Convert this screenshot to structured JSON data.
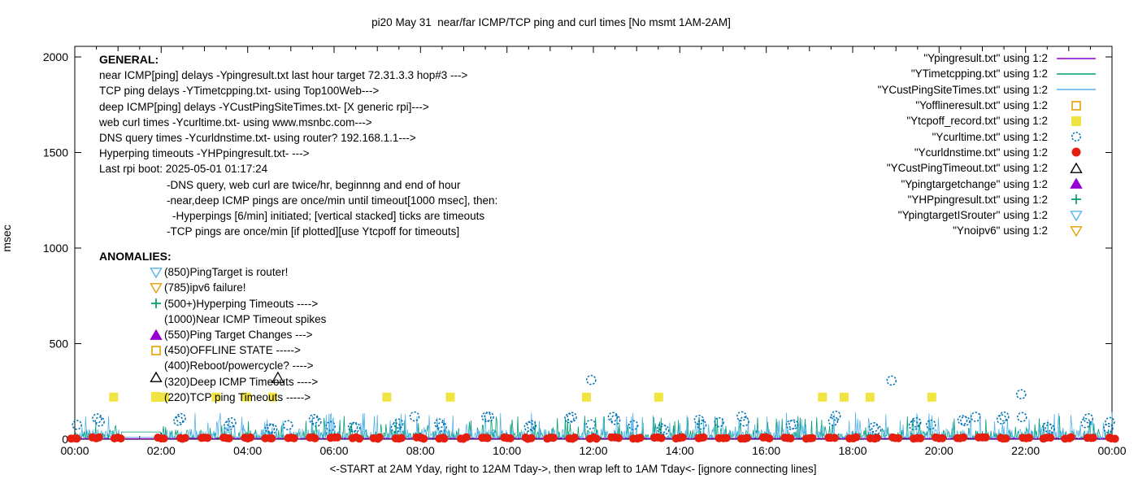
{
  "title": "pi20 May 31  near/far ICMP/TCP ping and curl times [No msmt 1AM-2AM]",
  "caption": "<-START at 2AM Yday, right to 12AM Tday->, then wrap left to 1AM Tday<- [ignore connecting lines]",
  "general": {
    "header": "GENERAL:",
    "lines": [
      {
        "indent": 0,
        "text": "near ICMP[ping] delays -Ypingresult.txt last hour target 72.31.3.3 hop#3 --->"
      },
      {
        "indent": 0,
        "text": "TCP ping delays -YTimetcpping.txt- using Top100Web--->"
      },
      {
        "indent": 0,
        "text": "deep ICMP[ping] delays -YCustPingSiteTimes.txt- [X generic rpi]--->"
      },
      {
        "indent": 0,
        "text": "web curl times -Ycurltime.txt- using www.msnbc.com--->"
      },
      {
        "indent": 0,
        "text": "DNS query times -Ycurldnstime.txt- using router? 192.168.1.1--->"
      },
      {
        "indent": 0,
        "text": "Hyperping timeouts -YHPpingresult.txt- --->"
      },
      {
        "indent": 0,
        "text": "Last rpi boot: 2025-05-01 01:17:24"
      },
      {
        "indent": 1,
        "text": "-DNS query, web curl are twice/hr, beginnng and end of hour"
      },
      {
        "indent": 1,
        "text": "-near,deep ICMP pings are once/min until timeout[1000 msec], then:"
      },
      {
        "indent": 2,
        "text": "-Hyperpings [6/min] initiated; [vertical stacked] ticks are timeouts"
      },
      {
        "indent": 1,
        "text": "-TCP pings are once/min [if plotted][use Ytcpoff for timeouts]"
      }
    ]
  },
  "anomalies": {
    "header": "ANOMALIES:",
    "items": [
      {
        "marker": "triangle-down-open-skyblue",
        "raise": false,
        "text": "(850)PingTarget is router!"
      },
      {
        "marker": "triangle-down-open-orange",
        "raise": false,
        "text": "(785)ipv6 failure!"
      },
      {
        "marker": "plus-teal",
        "raise": false,
        "text": "(500+)Hyperping Timeouts ---->"
      },
      {
        "marker": "",
        "raise": false,
        "text": "(1000)Near ICMP Timeout spikes"
      },
      {
        "marker": "triangle-up-filled-purple",
        "raise": false,
        "text": "(550)Ping Target Changes --->"
      },
      {
        "marker": "square-open-orange",
        "raise": false,
        "text": "(450)OFFLINE STATE ----->"
      },
      {
        "marker": "",
        "raise": false,
        "text": "(400)Reboot/powercycle? ---->"
      },
      {
        "marker": "triangle-up-open-black",
        "raise": true,
        "text": "(320)Deep ICMP Timeouts ---->"
      },
      {
        "marker": "square-filled-yellow",
        "raise": false,
        "text": "(220)TCP ping Timeouts ----->"
      }
    ]
  },
  "legend": [
    {
      "label": "\"Ypingresult.txt\" using 1:2",
      "marker": "line-purple"
    },
    {
      "label": "\"YTimetcpping.txt\" using 1:2",
      "marker": "line-teal"
    },
    {
      "label": "\"YCustPingSiteTimes.txt\" using 1:2",
      "marker": "line-skyblue"
    },
    {
      "label": "\"Yofflineresult.txt\" using 1:2",
      "marker": "square-open-orange"
    },
    {
      "label": "\"Ytcpoff_record.txt\" using 1:2",
      "marker": "square-filled-yellow"
    },
    {
      "label": "\"Ycurltime.txt\" using 1:2",
      "marker": "circle-open-blue"
    },
    {
      "label": "\"Ycurldnstime.txt\" using 1:2",
      "marker": "circle-filled-red"
    },
    {
      "label": "\"YCustPingTimeout.txt\" using 1:2",
      "marker": "triangle-up-open-black"
    },
    {
      "label": "\"Ypingtargetchange\" using 1:2",
      "marker": "triangle-up-filled-purple"
    },
    {
      "label": "\"YHPpingresult.txt\" using 1:2",
      "marker": "plus-teal"
    },
    {
      "label": "\"YpingtargetISrouter\" using 1:2",
      "marker": "triangle-down-open-skyblue"
    },
    {
      "label": "\"Ynoipv6\" using 1:2",
      "marker": "triangle-down-open-orange"
    }
  ],
  "chart_data": {
    "type": "line+scatter",
    "title": "pi20 May 31  near/far ICMP/TCP ping and curl times [No msmt 1AM-2AM]",
    "colors": {
      "purple": "#9400d3",
      "teal": "#009e73",
      "skyblue": "#56b4e9",
      "orange": "#e69f00",
      "yellow": "#f0e442",
      "blue": "#0072b2",
      "red": "#e51e10",
      "black": "#000000"
    },
    "x_axis": {
      "range_hours": [
        0,
        24
      ],
      "major_every_hours": 2,
      "minor_every_hours": 0.5,
      "tick_labels": [
        "00:00",
        "02:00",
        "04:00",
        "06:00",
        "08:00",
        "10:00",
        "12:00",
        "14:00",
        "16:00",
        "18:00",
        "20:00",
        "22:00",
        "00:00"
      ]
    },
    "y_axis": {
      "label": "msec",
      "range": [
        0,
        2000
      ],
      "ticks": [
        0,
        500,
        1000,
        1500,
        2000
      ]
    },
    "no_measurement_gap_hours": [
      1.08,
      2.0
    ],
    "series_lines": [
      {
        "name": "Ypingresult.txt",
        "color_key": "purple",
        "desc": "near ICMP ping, flat ~2-4 msec"
      },
      {
        "name": "YTimetcpping.txt",
        "color_key": "teal",
        "desc": "TCP ping grass noise ~2-130 msec"
      },
      {
        "name": "YCustPingSiteTimes.txt",
        "color_key": "skyblue",
        "desc": "deep ICMP grass noise ~3-160 msec"
      }
    ],
    "scatter": {
      "tcp_timeout_squares": {
        "name": "Ytcpoff_record.txt",
        "marker": "square-filled-yellow",
        "value_msec": 220,
        "hours": [
          0.9,
          2.08,
          3.27,
          3.97,
          4.58,
          7.22,
          8.69,
          11.84,
          13.51,
          17.3,
          17.8,
          18.4,
          19.83
        ]
      },
      "deep_icmp_timeouts": {
        "name": "YCustPingTimeout.txt",
        "marker": "triangle-up-open-black",
        "points": [
          {
            "h": 4.7,
            "v": 320
          }
        ]
      },
      "curl_times": {
        "name": "Ycurltime.txt",
        "marker": "circle-open-blue",
        "pattern": "twice per hour, ~55-130 msec, paired points near each half hour; none 1AM-2AM",
        "extra_points": [
          {
            "h": 0.05,
            "v": 75
          },
          {
            "h": 11.95,
            "v": 310
          },
          {
            "h": 18.9,
            "v": 307
          },
          {
            "h": 21.9,
            "v": 235
          },
          {
            "h": 23.95,
            "v": 90
          }
        ]
      },
      "dns_times": {
        "name": "Ycurldnstime.txt",
        "marker": "circle-filled-red",
        "value_msec": 6,
        "pattern": "clusters every 30 min along the 0 line; none 1:30AM"
      }
    }
  }
}
